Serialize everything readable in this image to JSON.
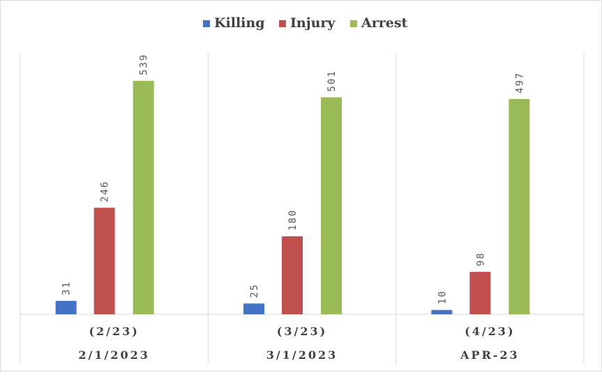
{
  "chart_data": {
    "type": "bar",
    "title": "",
    "xlabel": "",
    "ylabel": "",
    "categories": [
      {
        "line1": "(2/23)",
        "line2": "2/1/2023"
      },
      {
        "line1": "(3/23)",
        "line2": "3/1/2023"
      },
      {
        "line1": "(4/23)",
        "line2": "APR-23"
      }
    ],
    "series": [
      {
        "name": "Killing",
        "color": "#4472c4",
        "values": [
          31,
          25,
          10
        ]
      },
      {
        "name": "Injury",
        "color": "#c0504d",
        "values": [
          246,
          180,
          98
        ]
      },
      {
        "name": "Arrest",
        "color": "#9bbb59",
        "values": [
          539,
          501,
          497
        ]
      }
    ],
    "ylim": [
      0,
      539
    ],
    "grid": false,
    "legend_position": "top",
    "data_labels": true,
    "data_label_orientation": "vertical"
  }
}
